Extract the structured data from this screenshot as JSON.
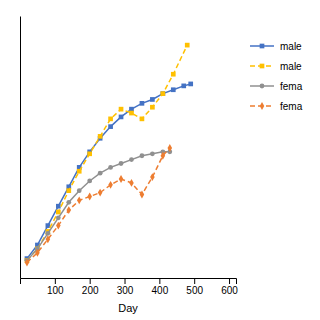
{
  "chart_data": {
    "type": "line",
    "x_label": "Day",
    "xlim": [
      0,
      620
    ],
    "xticks": [
      100,
      200,
      300,
      400,
      500,
      600
    ],
    "ylim": [
      -5,
      130
    ],
    "tick_labels": "x",
    "series": [
      {
        "name": "male",
        "color": "#4472C4",
        "marker": "square",
        "line_style": "solid",
        "x": [
          20,
          50,
          80,
          110,
          140,
          170,
          200,
          230,
          260,
          290,
          320,
          350,
          380,
          410,
          440,
          470,
          490
        ],
        "values": [
          5,
          12,
          22,
          32,
          42,
          52,
          60,
          67,
          73,
          78,
          82,
          85,
          87,
          90,
          92,
          94,
          95
        ]
      },
      {
        "name": "male",
        "color": "#FFC000",
        "marker": "square",
        "line_style": "dashed",
        "x": [
          20,
          50,
          80,
          110,
          140,
          170,
          200,
          230,
          260,
          290,
          320,
          350,
          380,
          410,
          440,
          480
        ],
        "values": [
          4,
          10,
          19,
          29,
          40,
          50,
          59,
          68,
          77,
          82,
          80,
          77,
          83,
          90,
          100,
          115
        ]
      },
      {
        "name": "fema",
        "color": "#909090",
        "marker": "circle",
        "line_style": "solid",
        "x": [
          20,
          50,
          80,
          110,
          140,
          170,
          200,
          230,
          260,
          290,
          320,
          350,
          380,
          410,
          430
        ],
        "values": [
          4,
          10,
          18,
          26,
          34,
          40,
          45,
          49,
          52,
          54,
          56,
          58,
          59,
          60,
          60
        ]
      },
      {
        "name": "fema",
        "color": "#ED7D31",
        "marker": "diamond",
        "line_style": "dashed",
        "x": [
          20,
          50,
          80,
          110,
          140,
          170,
          200,
          230,
          260,
          290,
          320,
          350,
          380,
          410,
          430
        ],
        "values": [
          3,
          8,
          15,
          22,
          30,
          35,
          37,
          39,
          43,
          46,
          44,
          38,
          47,
          58,
          62
        ]
      }
    ]
  }
}
